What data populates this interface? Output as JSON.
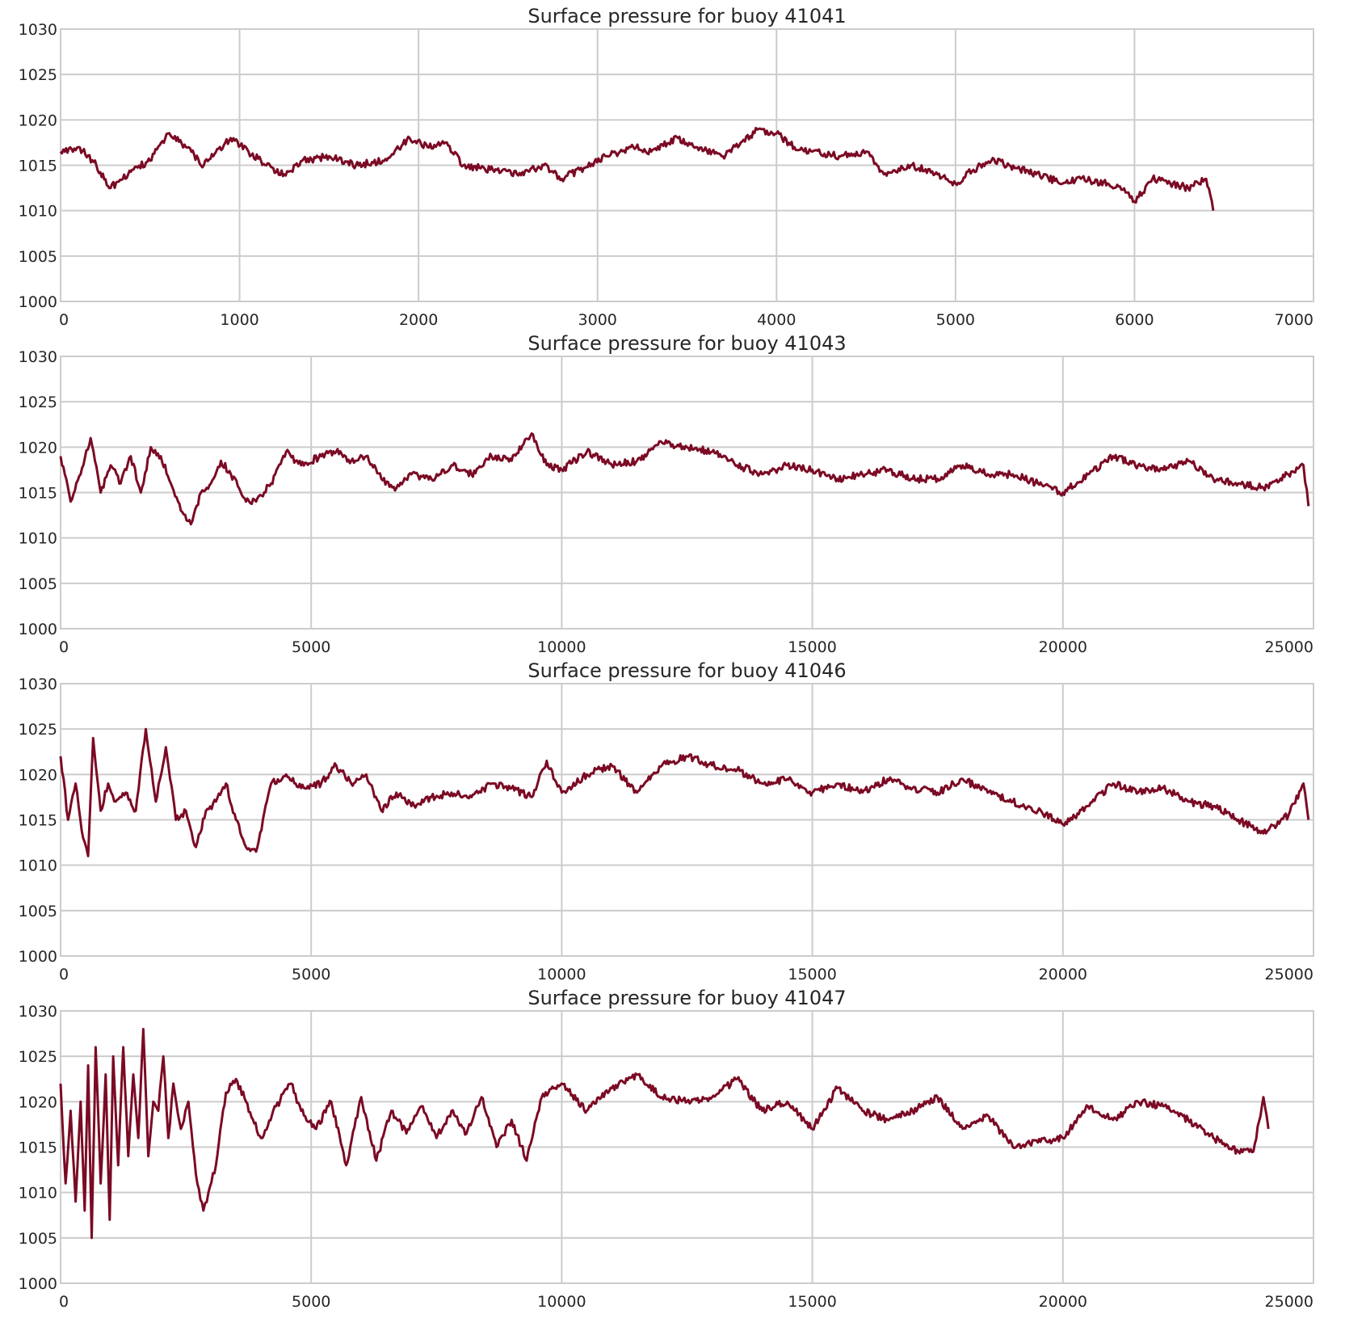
{
  "style": {
    "line_color": "#7b0a24",
    "grid_color": "#cccccc",
    "background": "#ffffff"
  },
  "chart_data": [
    {
      "type": "line",
      "title": "Surface pressure for buoy 41041",
      "xlabel": "",
      "ylabel": "",
      "xlim": [
        0,
        7000
      ],
      "ylim": [
        1000,
        1030
      ],
      "xticks": [
        "0",
        "1000",
        "2000",
        "3000",
        "4000",
        "5000",
        "6000",
        "7000"
      ],
      "yticks": [
        "1000",
        "1005",
        "1010",
        "1015",
        "1020",
        "1025",
        "1030"
      ],
      "grid": true,
      "series": [
        {
          "x": [
            0,
            100,
            200,
            280,
            400,
            500,
            600,
            700,
            800,
            950,
            1050,
            1150,
            1250,
            1350,
            1500,
            1650,
            1800,
            1950,
            2050,
            2150,
            2250,
            2400,
            2550,
            2700,
            2800,
            2900,
            3050,
            3200,
            3300,
            3450,
            3550,
            3700,
            3800,
            3900,
            4000,
            4100,
            4200,
            4350,
            4500,
            4600,
            4750,
            4900,
            5000,
            5100,
            5200,
            5300,
            5450,
            5600,
            5700,
            5850,
            5950,
            6000,
            6100,
            6200,
            6300,
            6400,
            6440
          ],
          "y": [
            1016.5,
            1017,
            1015,
            1012.5,
            1014.5,
            1015.5,
            1018.5,
            1017,
            1015,
            1018,
            1016.5,
            1015,
            1014,
            1015.5,
            1016,
            1015,
            1015.5,
            1018,
            1017,
            1017.5,
            1015,
            1014.5,
            1014,
            1015,
            1013.5,
            1014.5,
            1016,
            1017,
            1016.5,
            1018,
            1017,
            1016,
            1017.5,
            1019,
            1018.5,
            1017,
            1016.5,
            1016,
            1016.5,
            1014,
            1015,
            1014,
            1013,
            1014.5,
            1015.5,
            1015,
            1014,
            1013,
            1013.5,
            1013,
            1012,
            1011,
            1013.5,
            1013,
            1012.5,
            1013.5,
            1010
          ]
        }
      ]
    },
    {
      "type": "line",
      "title": "Surface pressure for buoy 41043",
      "xlabel": "",
      "ylabel": "",
      "xlim": [
        0,
        25000
      ],
      "ylim": [
        1000,
        1030
      ],
      "xticks": [
        "0",
        "5000",
        "10000",
        "15000",
        "20000",
        "25000"
      ],
      "yticks": [
        "1000",
        "1005",
        "1010",
        "1015",
        "1020",
        "1025",
        "1030"
      ],
      "grid": true,
      "series": [
        {
          "x": [
            0,
            200,
            400,
            600,
            800,
            1000,
            1200,
            1400,
            1600,
            1800,
            2000,
            2200,
            2400,
            2600,
            2800,
            3000,
            3200,
            3400,
            3700,
            3900,
            4200,
            4500,
            4800,
            5200,
            5500,
            5800,
            6100,
            6400,
            6700,
            7000,
            7400,
            7800,
            8200,
            8600,
            9000,
            9400,
            9700,
            10000,
            10500,
            11000,
            11500,
            12000,
            12500,
            13000,
            13500,
            14000,
            14500,
            15000,
            15500,
            16000,
            16500,
            17000,
            17500,
            18000,
            18500,
            19000,
            19500,
            20000,
            20500,
            21000,
            21500,
            22000,
            22500,
            23000,
            23500,
            24000,
            24500,
            24800,
            24900
          ],
          "y": [
            1019,
            1014,
            1017,
            1021,
            1015,
            1018,
            1016,
            1019,
            1015,
            1020,
            1019,
            1016,
            1013,
            1011.5,
            1015,
            1016,
            1018.5,
            1017,
            1014,
            1014,
            1016,
            1019.5,
            1018,
            1019,
            1019.5,
            1018.5,
            1019,
            1016.5,
            1015.5,
            1017,
            1016.5,
            1018,
            1017,
            1019,
            1018.5,
            1021.5,
            1018,
            1017.5,
            1019.5,
            1018,
            1018.5,
            1020.5,
            1020,
            1019.5,
            1018,
            1017,
            1018,
            1017.5,
            1016.5,
            1017,
            1017.5,
            1016.5,
            1016.5,
            1018,
            1017,
            1017,
            1016,
            1015,
            1017,
            1019,
            1018,
            1017.5,
            1018.5,
            1016.5,
            1016,
            1015.5,
            1017,
            1018,
            1013.5
          ]
        }
      ]
    },
    {
      "type": "line",
      "title": "Surface pressure for buoy 41046",
      "xlabel": "",
      "ylabel": "",
      "xlim": [
        0,
        25000
      ],
      "ylim": [
        1000,
        1030
      ],
      "xticks": [
        "0",
        "5000",
        "10000",
        "15000",
        "20000",
        "25000"
      ],
      "yticks": [
        "1000",
        "1005",
        "1010",
        "1015",
        "1020",
        "1025",
        "1030"
      ],
      "grid": true,
      "series": [
        {
          "x": [
            0,
            150,
            300,
            450,
            550,
            650,
            800,
            950,
            1100,
            1300,
            1500,
            1700,
            1900,
            2100,
            2300,
            2500,
            2700,
            2900,
            3100,
            3300,
            3500,
            3700,
            3900,
            4200,
            4500,
            4800,
            5200,
            5500,
            5800,
            6100,
            6400,
            6700,
            7000,
            7400,
            7800,
            8200,
            8600,
            9000,
            9400,
            9700,
            10000,
            10500,
            11000,
            11500,
            12000,
            12500,
            13000,
            13500,
            14000,
            14500,
            15000,
            15500,
            16000,
            16500,
            17000,
            17500,
            18000,
            18500,
            19000,
            19500,
            20000,
            20500,
            21000,
            21500,
            22000,
            22500,
            23000,
            23500,
            24000,
            24500,
            24800,
            24900
          ],
          "y": [
            1022,
            1015,
            1019,
            1013,
            1011,
            1024,
            1016,
            1019,
            1017,
            1018,
            1016,
            1025,
            1017,
            1023,
            1015,
            1016,
            1012,
            1016,
            1017,
            1019,
            1015,
            1012,
            1011.5,
            1019,
            1020,
            1018.5,
            1019,
            1021,
            1019,
            1020,
            1016,
            1018,
            1016.5,
            1017.5,
            1018,
            1017.5,
            1019,
            1018.5,
            1017.5,
            1021.5,
            1018,
            1020,
            1021,
            1018,
            1021,
            1022,
            1021,
            1020.5,
            1019,
            1019.5,
            1018,
            1019,
            1018,
            1019.5,
            1018.5,
            1018,
            1019.5,
            1018,
            1017,
            1016,
            1014.5,
            1016.5,
            1019,
            1018,
            1018.5,
            1017,
            1016.5,
            1015,
            1013.5,
            1015.5,
            1019,
            1015
          ]
        }
      ]
    },
    {
      "type": "line",
      "title": "Surface pressure for buoy 41047",
      "xlabel": "",
      "ylabel": "",
      "xlim": [
        0,
        25000
      ],
      "ylim": [
        1000,
        1030
      ],
      "xticks": [
        "0",
        "5000",
        "10000",
        "15000",
        "20000",
        "25000"
      ],
      "yticks": [
        "1000",
        "1005",
        "1010",
        "1015",
        "1020",
        "1025",
        "1030"
      ],
      "grid": true,
      "series": [
        {
          "x": [
            0,
            100,
            200,
            300,
            400,
            480,
            550,
            620,
            700,
            800,
            900,
            980,
            1050,
            1150,
            1250,
            1350,
            1450,
            1550,
            1650,
            1750,
            1850,
            1950,
            2050,
            2150,
            2250,
            2400,
            2550,
            2700,
            2850,
            2950,
            3100,
            3300,
            3500,
            3700,
            4000,
            4300,
            4600,
            4800,
            5100,
            5400,
            5700,
            6000,
            6300,
            6600,
            6900,
            7200,
            7500,
            7800,
            8100,
            8400,
            8700,
            9000,
            9300,
            9600,
            10000,
            10500,
            11000,
            11500,
            12000,
            12500,
            13000,
            13500,
            14000,
            14500,
            15000,
            15500,
            16000,
            16500,
            17000,
            17500,
            18000,
            18500,
            19000,
            19500,
            20000,
            20500,
            21000,
            21500,
            22000,
            22500,
            23000,
            23500,
            23800,
            24000,
            24100
          ],
          "y": [
            1022,
            1011,
            1019,
            1009,
            1020,
            1008,
            1024,
            1005,
            1026,
            1011,
            1023,
            1007,
            1025,
            1013,
            1026,
            1014,
            1023,
            1016,
            1028,
            1014,
            1020,
            1019,
            1025,
            1016,
            1022,
            1017,
            1020,
            1012,
            1008,
            1010,
            1013,
            1021,
            1022.5,
            1020,
            1016,
            1019.5,
            1022,
            1019,
            1017,
            1020,
            1013,
            1020.5,
            1013.5,
            1019,
            1016.5,
            1019.5,
            1016,
            1019,
            1016.5,
            1020.5,
            1015,
            1018,
            1013.5,
            1020.5,
            1022,
            1019,
            1021.5,
            1023,
            1020.5,
            1020,
            1020.5,
            1022.5,
            1019,
            1020,
            1017,
            1021.5,
            1019,
            1018,
            1019,
            1020.5,
            1017,
            1018.5,
            1015,
            1015.5,
            1016,
            1019.5,
            1018,
            1020,
            1019.5,
            1018,
            1016,
            1014.5,
            1014.5,
            1020.5,
            1017
          ]
        }
      ]
    }
  ]
}
